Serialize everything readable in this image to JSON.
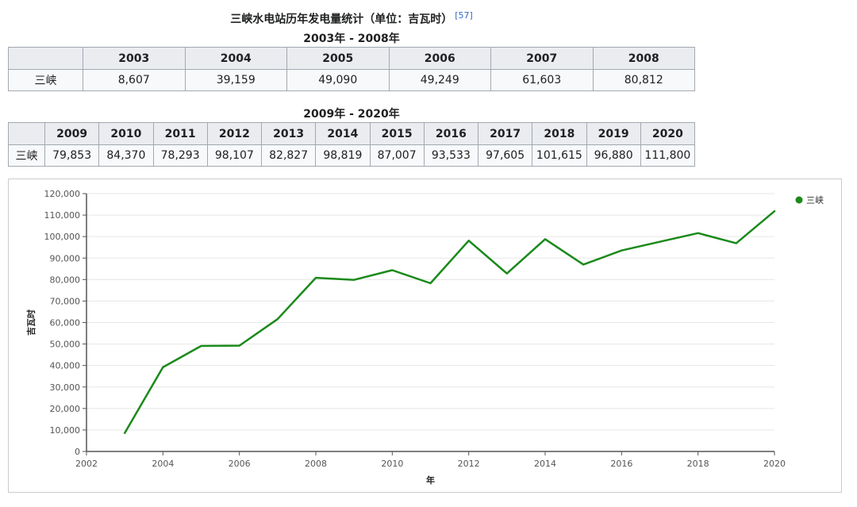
{
  "caption": {
    "title": "三峡水电站历年发电量统计（单位：吉瓦时）",
    "ref": "[57]",
    "range1": "2003年 - 2008年",
    "range2": "2009年 - 2020年"
  },
  "table1": {
    "years": [
      "2003",
      "2004",
      "2005",
      "2006",
      "2007",
      "2008"
    ],
    "row_label": "三峡",
    "values": [
      "8,607",
      "39,159",
      "49,090",
      "49,249",
      "61,603",
      "80,812"
    ]
  },
  "table2": {
    "years": [
      "2009",
      "2010",
      "2011",
      "2012",
      "2013",
      "2014",
      "2015",
      "2016",
      "2017",
      "2018",
      "2019",
      "2020"
    ],
    "row_label": "三峡",
    "values": [
      "79,853",
      "84,370",
      "78,293",
      "98,107",
      "82,827",
      "98,819",
      "87,007",
      "93,533",
      "97,605",
      "101,615",
      "96,880",
      "111,800"
    ]
  },
  "chart_data": {
    "type": "line",
    "xlabel": "年",
    "ylabel": "吉瓦时",
    "xlim": [
      2002,
      2020
    ],
    "ylim": [
      0,
      120000
    ],
    "x_ticks": [
      2002,
      2004,
      2006,
      2008,
      2010,
      2012,
      2014,
      2016,
      2018,
      2020
    ],
    "y_ticks": [
      0,
      10000,
      20000,
      30000,
      40000,
      50000,
      60000,
      70000,
      80000,
      90000,
      100000,
      110000,
      120000
    ],
    "grid": true,
    "legend_position": "top-right",
    "series": [
      {
        "name": "三峡",
        "color": "#1a8a1a",
        "x": [
          2003,
          2004,
          2005,
          2006,
          2007,
          2008,
          2009,
          2010,
          2011,
          2012,
          2013,
          2014,
          2015,
          2016,
          2017,
          2018,
          2019,
          2020
        ],
        "values": [
          8607,
          39159,
          49090,
          49249,
          61603,
          80812,
          79853,
          84370,
          78293,
          98107,
          82827,
          98819,
          87007,
          93533,
          97605,
          101615,
          96880,
          111800
        ]
      }
    ]
  }
}
